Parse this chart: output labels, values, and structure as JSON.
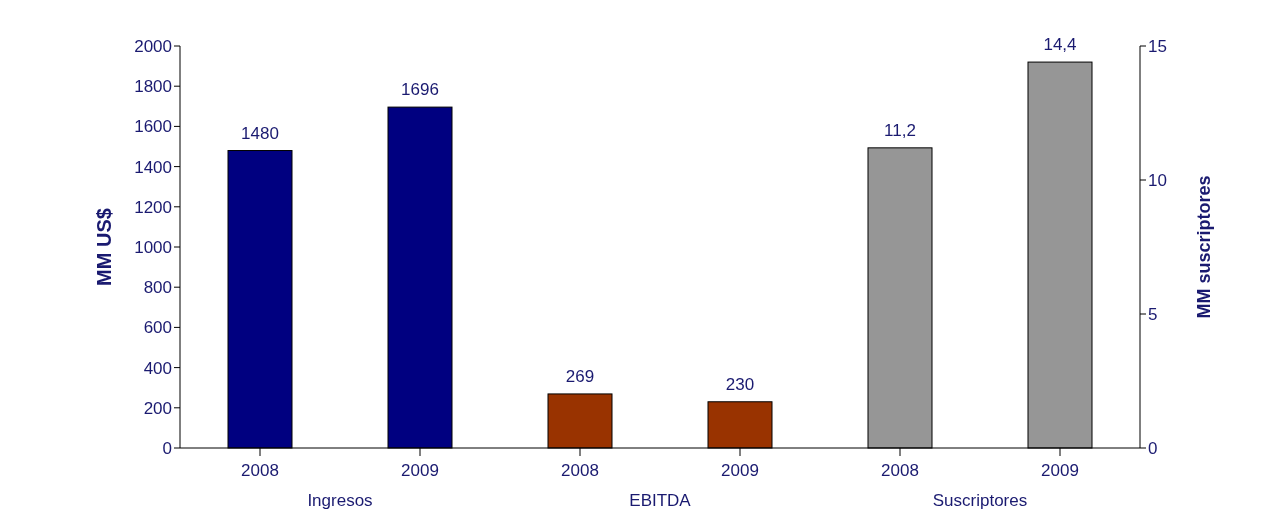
{
  "chart_data": {
    "type": "bar",
    "categories": [
      "2008",
      "2009",
      "2008",
      "2009",
      "2008",
      "2009"
    ],
    "series": [
      {
        "color": "#000080",
        "values": [
          1480,
          1696,
          null,
          null,
          null,
          null
        ],
        "value_labels": [
          "1480",
          "1696",
          null,
          null,
          null,
          null
        ]
      },
      {
        "color": "#993300",
        "values": [
          null,
          null,
          269,
          230,
          null,
          null
        ],
        "value_labels": [
          null,
          null,
          "269",
          "230",
          null,
          null
        ]
      },
      {
        "color": "#969696",
        "axis": "y2",
        "values": [
          null,
          null,
          null,
          null,
          11.2,
          14.4
        ],
        "value_labels": [
          null,
          null,
          null,
          null,
          "11,2",
          "14,4"
        ]
      }
    ],
    "ylabel": "MM US$",
    "y2label": "MM suscriptores",
    "ylim": [
      0,
      2000
    ],
    "yticks": [
      0,
      200,
      400,
      600,
      800,
      1000,
      1200,
      1400,
      1600,
      1800,
      2000
    ],
    "y2lim": [
      0,
      15
    ],
    "y2ticks": [
      0,
      5,
      10,
      15
    ],
    "annotations": [
      "Ingresos",
      "EBITDA",
      "Suscriptores"
    ],
    "grid": false,
    "legend": false
  }
}
